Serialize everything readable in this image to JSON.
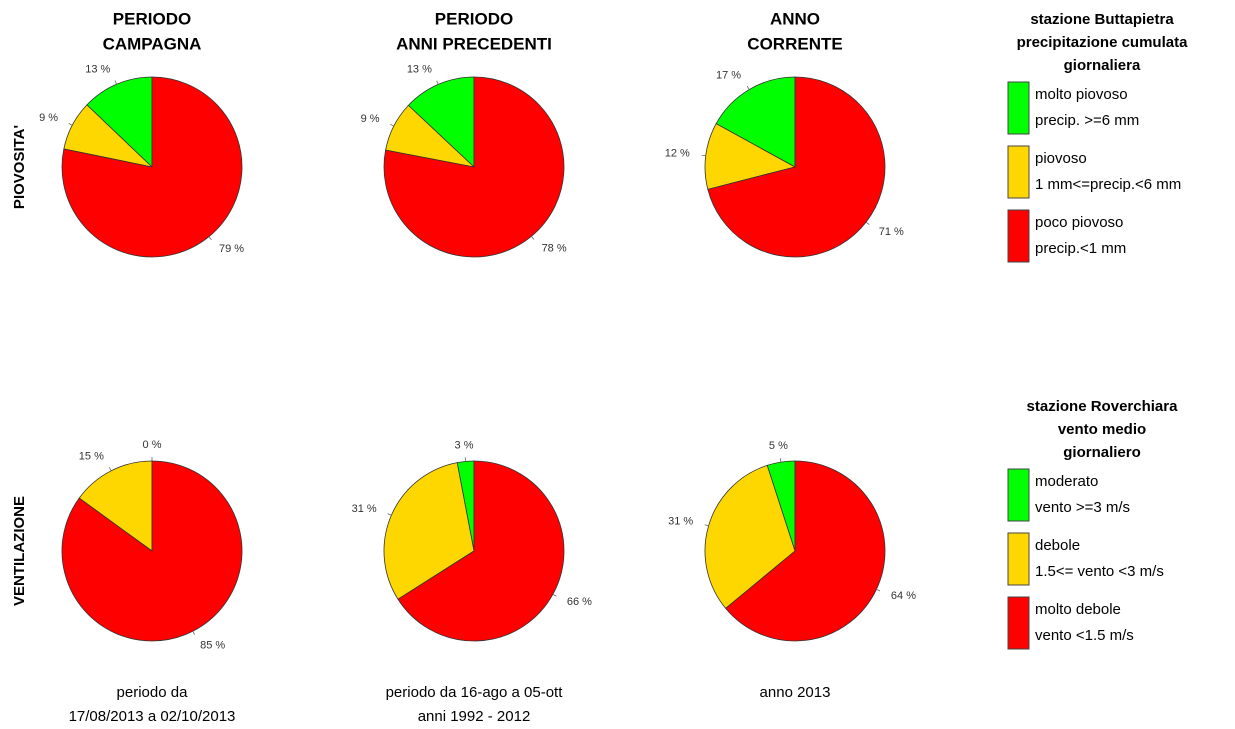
{
  "columns": [
    {
      "title": [
        "PERIODO",
        "CAMPAGNA"
      ],
      "footer": [
        "periodo da",
        "17/08/2013  a  02/10/2013"
      ]
    },
    {
      "title": [
        "PERIODO",
        "ANNI PRECEDENTI"
      ],
      "footer": [
        "periodo da  16-ago  a  05-ott",
        "anni 1992 - 2012"
      ]
    },
    {
      "title": [
        "ANNO",
        "CORRENTE"
      ],
      "footer": [
        "anno  2013"
      ]
    }
  ],
  "rows": [
    "PIOVOSITA'",
    "VENTILAZIONE"
  ],
  "legends": [
    {
      "title": [
        "stazione  Buttapietra",
        "precipitazione cumulata",
        "giornaliera"
      ],
      "entries": [
        {
          "label": [
            "molto piovoso",
            "precip. >=6 mm"
          ],
          "color": "#00ff00"
        },
        {
          "label": [
            "piovoso",
            "1 mm<=precip.<6 mm"
          ],
          "color": "#ffd700"
        },
        {
          "label": [
            "poco piovoso",
            "precip.<1 mm"
          ],
          "color": "#ff0000"
        }
      ]
    },
    {
      "title": [
        "stazione  Roverchiara",
        "vento medio",
        "giornaliero"
      ],
      "entries": [
        {
          "label": [
            "moderato",
            "vento >=3 m/s"
          ],
          "color": "#00ff00"
        },
        {
          "label": [
            "debole",
            "1.5<= vento <3 m/s"
          ],
          "color": "#ffd700"
        },
        {
          "label": [
            "molto debole",
            "vento <1.5 m/s"
          ],
          "color": "#ff0000"
        }
      ]
    }
  ],
  "chart_data": [
    {
      "type": "pie",
      "values": [
        13,
        9,
        79
      ],
      "value_labels": [
        "13 %",
        "9 %",
        "79 %"
      ],
      "colors": [
        "#00ff00",
        "#ffd700",
        "#ff0000"
      ]
    },
    {
      "type": "pie",
      "values": [
        13,
        9,
        78
      ],
      "value_labels": [
        "13 %",
        "9 %",
        "78 %"
      ],
      "colors": [
        "#00ff00",
        "#ffd700",
        "#ff0000"
      ]
    },
    {
      "type": "pie",
      "values": [
        17,
        12,
        71
      ],
      "value_labels": [
        "17 %",
        "12 %",
        "71 %"
      ],
      "colors": [
        "#00ff00",
        "#ffd700",
        "#ff0000"
      ]
    },
    {
      "type": "pie",
      "values": [
        0,
        15,
        85
      ],
      "value_labels": [
        "0 %",
        "15 %",
        "85 %"
      ],
      "colors": [
        "#00ff00",
        "#ffd700",
        "#ff0000"
      ]
    },
    {
      "type": "pie",
      "values": [
        3,
        31,
        66
      ],
      "value_labels": [
        "3 %",
        "31 %",
        "66 %"
      ],
      "colors": [
        "#00ff00",
        "#ffd700",
        "#ff0000"
      ]
    },
    {
      "type": "pie",
      "values": [
        5,
        31,
        64
      ],
      "value_labels": [
        "5 %",
        "31 %",
        "64 %"
      ],
      "colors": [
        "#00ff00",
        "#ffd700",
        "#ff0000"
      ]
    }
  ]
}
